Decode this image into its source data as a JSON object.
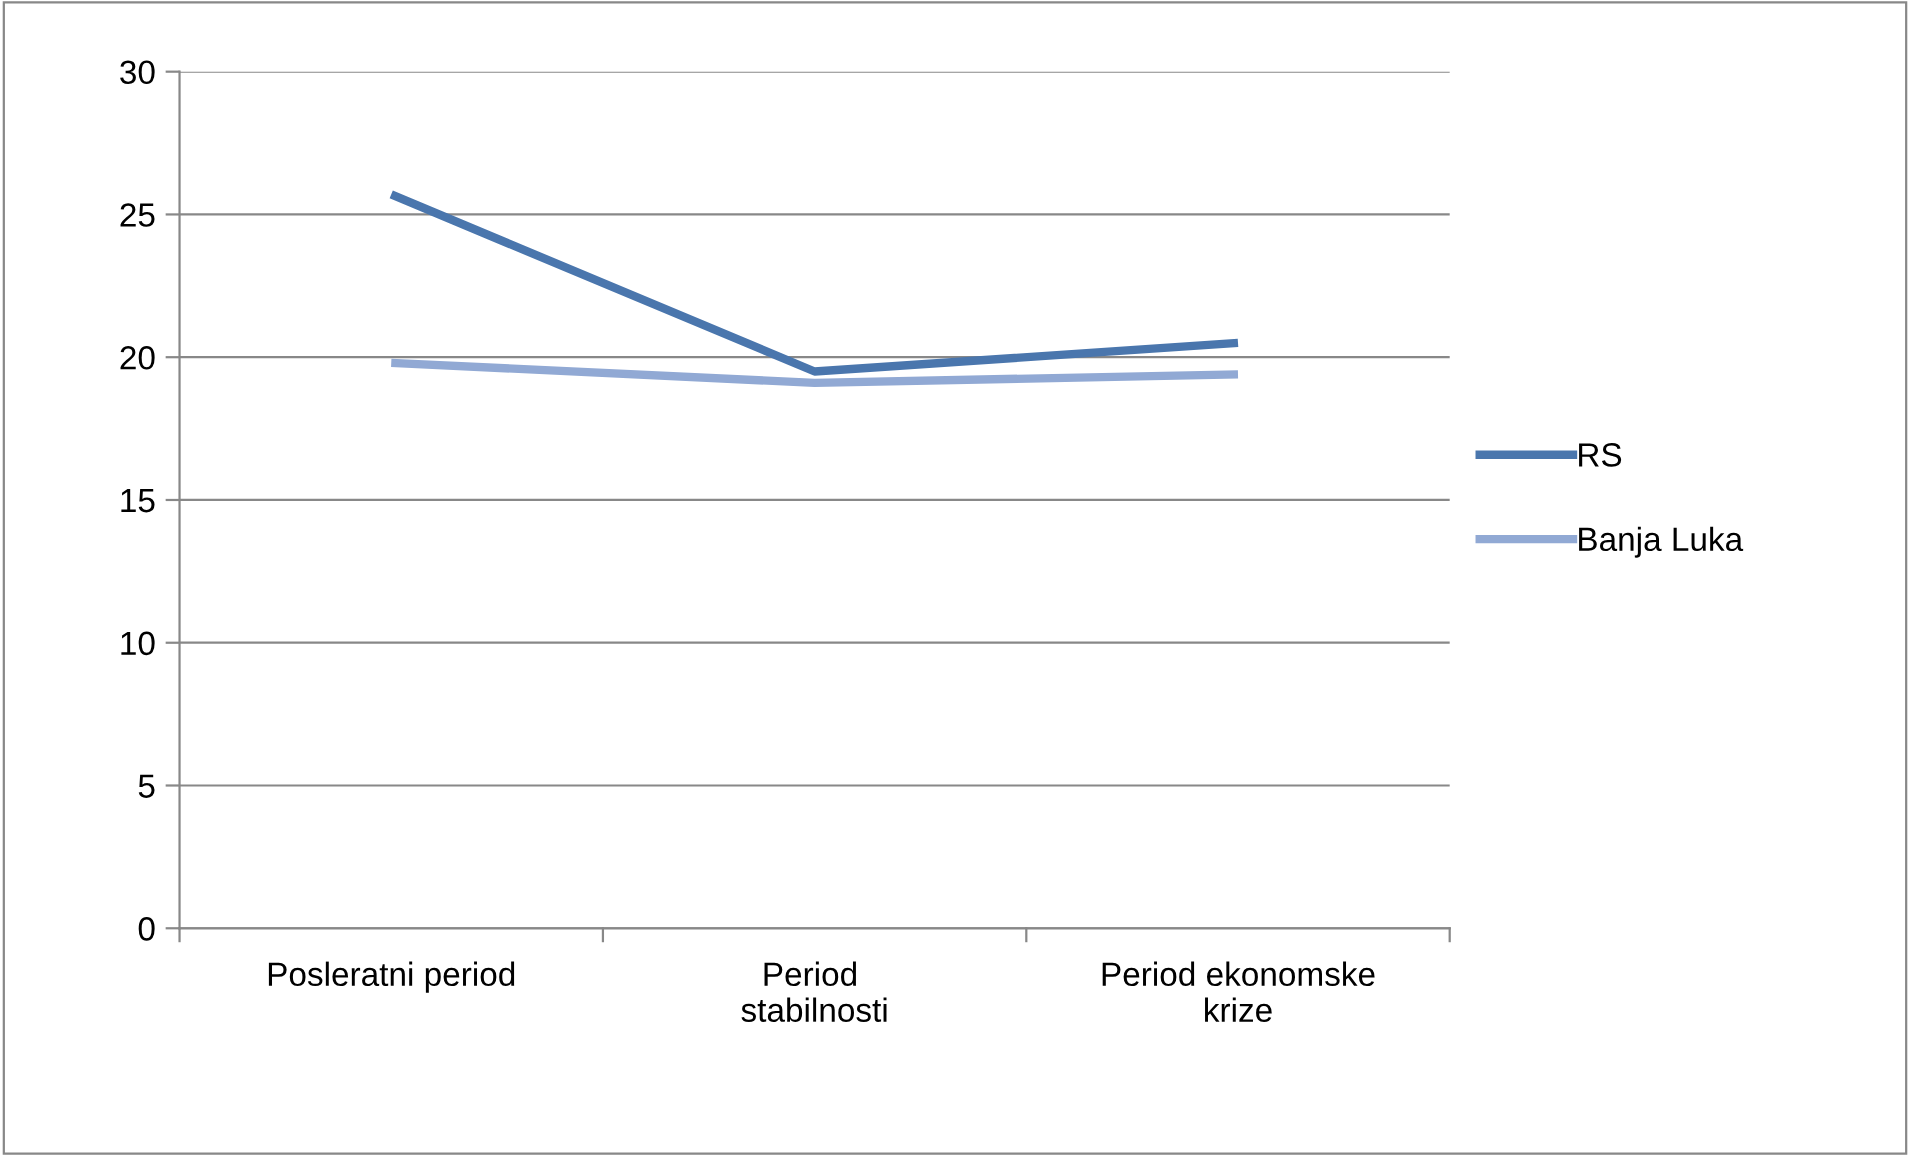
{
  "chart_data": {
    "type": "line",
    "categories": [
      "Posleratni period",
      "Period  stabilnosti",
      "Period ekonomske krize"
    ],
    "series": [
      {
        "name": "RS",
        "color": "#4a76ad",
        "values": [
          25.7,
          19.5,
          20.5
        ]
      },
      {
        "name": "Banja Luka",
        "color": "#91a9d4",
        "values": [
          19.8,
          19.1,
          19.4
        ]
      }
    ],
    "ylim": [
      0,
      30
    ],
    "yticks": [
      0,
      5,
      10,
      15,
      20,
      25,
      30
    ],
    "grid": "y",
    "legend": "right",
    "marker": "none",
    "line_style": "solid"
  }
}
